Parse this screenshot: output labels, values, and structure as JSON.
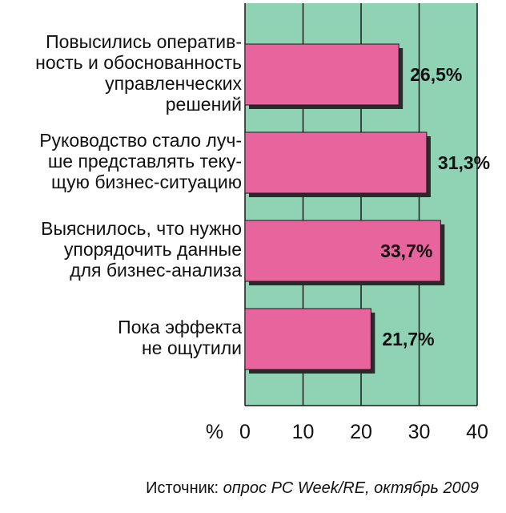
{
  "chart_data": {
    "type": "bar",
    "orientation": "horizontal",
    "categories": [
      "Повысились оператив-\nность и обоснованность\nуправленческих\nрешений",
      "Руководство стало луч-\nше представлять теку-\nщую бизнес-ситуацию",
      "Выяснилось, что нужно\nупорядочить данные\nдля бизнес-анализа",
      "Пока эффекта\nне ощутили"
    ],
    "values": [
      26.5,
      31.3,
      33.7,
      21.7
    ],
    "value_labels": [
      "26,5%",
      "31,3%",
      "33,7%",
      "21,7%"
    ],
    "xlim": [
      0,
      40
    ],
    "xticks": [
      "0",
      "10",
      "20",
      "30",
      "40"
    ],
    "xlabel": "%",
    "grid": true,
    "colors": {
      "plot_background": "#8fd3b4",
      "bar": "#e8649c",
      "bar_outline": "#1a1a1a",
      "grid": "#1a1a1a"
    }
  },
  "source": {
    "prefix": "Источник: ",
    "text": "опрос PC Week/RE, октябрь 2009"
  }
}
